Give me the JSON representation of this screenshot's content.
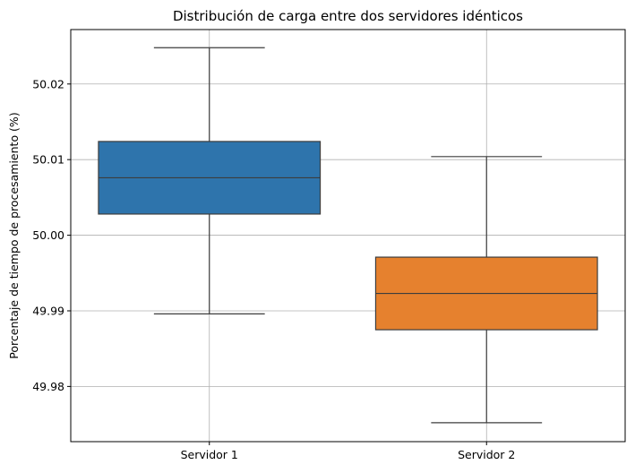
{
  "chart_data": {
    "type": "box",
    "title": "Distribución de carga entre dos servidores idénticos",
    "xlabel": "",
    "ylabel": "Porcentaje de tiempo de procesamiento (%)",
    "categories": [
      "Servidor 1",
      "Servidor 2"
    ],
    "ylim": [
      49.9727,
      50.0272
    ],
    "yticks": [
      49.98,
      49.99,
      50.0,
      50.01,
      50.02
    ],
    "ytick_labels": [
      "49.98",
      "49.99",
      "50.00",
      "50.01",
      "50.02"
    ],
    "grid": true,
    "boxes": [
      {
        "category": "Servidor 1",
        "whisker_low": 49.9896,
        "q1": 50.0028,
        "median": 50.0076,
        "q3": 50.0124,
        "whisker_high": 50.0248,
        "color": "#2e74ac"
      },
      {
        "category": "Servidor 2",
        "whisker_low": 49.9752,
        "q1": 49.9875,
        "median": 49.9923,
        "q3": 49.9971,
        "whisker_high": 50.0104,
        "color": "#e6812e"
      }
    ]
  }
}
